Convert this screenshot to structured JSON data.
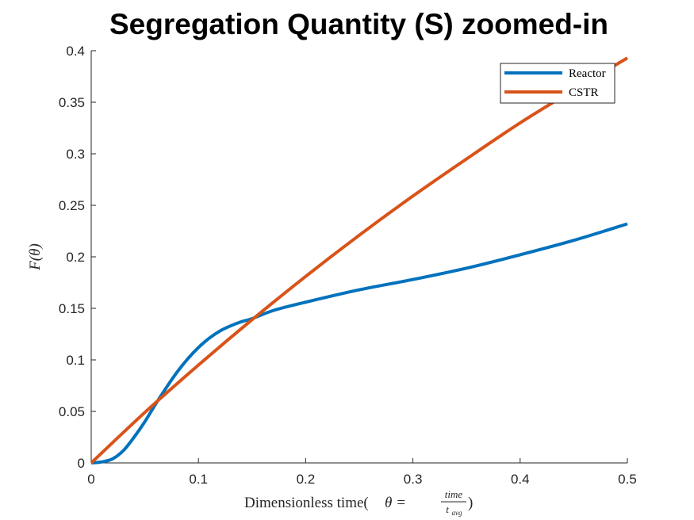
{
  "chart_data": {
    "type": "line",
    "title": "Segregation Quantity (S) zoomed-in",
    "xlabel": "Dimensionless time(θ = time / t_avg)",
    "xlabel_parts": {
      "prefix": "Dimensionless time(",
      "theta_eq": "θ = ",
      "numerator": "time",
      "denominator_base": "t",
      "denominator_sub": "avg",
      "suffix": ")"
    },
    "ylabel": "F(θ)",
    "xlim": [
      0,
      0.5
    ],
    "ylim": [
      0,
      0.4
    ],
    "x_ticks": [
      "0",
      "0.1",
      "0.2",
      "0.3",
      "0.4",
      "0.5"
    ],
    "y_ticks": [
      "0",
      "0.05",
      "0.1",
      "0.15",
      "0.2",
      "0.25",
      "0.3",
      "0.35",
      "0.4"
    ],
    "grid": false,
    "legend_position": "top-right",
    "series": [
      {
        "name": "Reactor",
        "color": "#0072BD",
        "x": [
          0,
          0.01,
          0.02,
          0.03,
          0.04,
          0.05,
          0.06,
          0.07,
          0.08,
          0.09,
          0.1,
          0.11,
          0.12,
          0.13,
          0.14,
          0.15,
          0.17,
          0.2,
          0.25,
          0.3,
          0.35,
          0.4,
          0.45,
          0.5
        ],
        "y": [
          0,
          0.001,
          0.004,
          0.012,
          0.025,
          0.04,
          0.057,
          0.073,
          0.088,
          0.101,
          0.112,
          0.121,
          0.128,
          0.133,
          0.137,
          0.14,
          0.148,
          0.156,
          0.168,
          0.178,
          0.189,
          0.202,
          0.216,
          0.232
        ]
      },
      {
        "name": "CSTR",
        "color": "#D95319",
        "x": [
          0,
          0.05,
          0.1,
          0.15,
          0.2,
          0.25,
          0.3,
          0.35,
          0.4,
          0.45,
          0.5
        ],
        "y": [
          0,
          0.049,
          0.095,
          0.139,
          0.181,
          0.221,
          0.259,
          0.295,
          0.33,
          0.362,
          0.393
        ]
      }
    ]
  }
}
